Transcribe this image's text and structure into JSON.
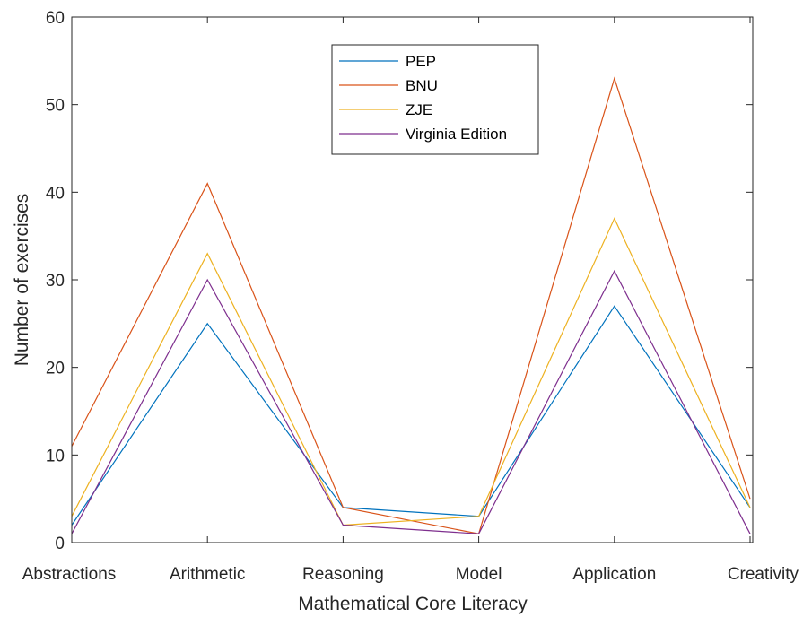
{
  "chart_data": {
    "type": "line",
    "title": "",
    "xlabel": "Mathematical Core Literacy",
    "ylabel": "Number of exercises",
    "categories": [
      "Abstractions",
      "Arithmetic",
      "Reasoning",
      "Model",
      "Application",
      "Creativity"
    ],
    "ylim": [
      0,
      60
    ],
    "yticks": [
      0,
      10,
      20,
      30,
      40,
      50,
      60
    ],
    "grid": false,
    "legend_position": "top-center",
    "series": [
      {
        "name": "PEP",
        "color": "#0072BD",
        "values": [
          2,
          25,
          4,
          3,
          27,
          4
        ]
      },
      {
        "name": "BNU",
        "color": "#D95319",
        "values": [
          11,
          41,
          4,
          1,
          53,
          5
        ]
      },
      {
        "name": "ZJE",
        "color": "#EDB120",
        "values": [
          3,
          33,
          2,
          3,
          37,
          4
        ]
      },
      {
        "name": "Virginia Edition",
        "color": "#7E2F8E",
        "values": [
          1,
          30,
          2,
          1,
          31,
          1
        ]
      }
    ]
  }
}
